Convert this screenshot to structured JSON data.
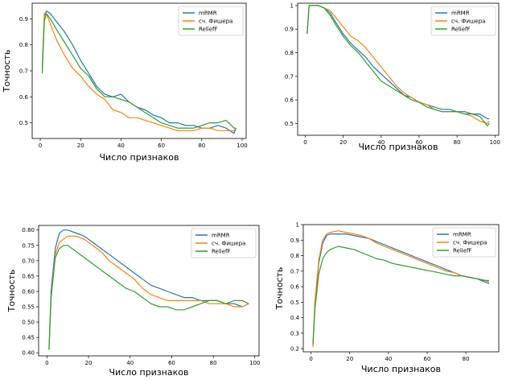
{
  "colors": {
    "mrmr": "#1f77b4",
    "fisher": "#ff7f0e",
    "relieff": "#2ca02c"
  },
  "chart_data": [
    {
      "type": "line",
      "xlabel": "Число признаков",
      "ylabel": "Точность",
      "xlim": [
        -4,
        102
      ],
      "ylim": [
        0.44,
        0.96
      ],
      "xticks": [
        0,
        20,
        40,
        60,
        80,
        100
      ],
      "yticks": [
        0.5,
        0.6,
        0.7,
        0.8,
        0.9
      ],
      "legend": "top-right",
      "series": [
        {
          "name": "mRMR",
          "x": [
            1,
            2,
            3,
            5,
            8,
            12,
            16,
            20,
            24,
            28,
            32,
            36,
            40,
            44,
            48,
            52,
            56,
            60,
            64,
            68,
            72,
            76,
            80,
            84,
            88,
            92,
            96,
            97
          ],
          "y": [
            0.71,
            0.91,
            0.93,
            0.92,
            0.89,
            0.85,
            0.8,
            0.74,
            0.69,
            0.64,
            0.61,
            0.6,
            0.61,
            0.58,
            0.56,
            0.55,
            0.53,
            0.52,
            0.5,
            0.5,
            0.49,
            0.49,
            0.48,
            0.48,
            0.49,
            0.48,
            0.46,
            0.48
          ]
        },
        {
          "name": "сч. Фишера",
          "x": [
            1,
            2,
            3,
            5,
            8,
            12,
            16,
            20,
            24,
            28,
            32,
            36,
            40,
            44,
            48,
            52,
            56,
            60,
            64,
            68,
            72,
            76,
            80,
            84,
            88,
            92,
            96,
            97
          ],
          "y": [
            0.7,
            0.92,
            0.92,
            0.88,
            0.82,
            0.76,
            0.71,
            0.68,
            0.64,
            0.61,
            0.59,
            0.55,
            0.54,
            0.52,
            0.52,
            0.51,
            0.5,
            0.49,
            0.48,
            0.47,
            0.47,
            0.47,
            0.48,
            0.48,
            0.47,
            0.47,
            0.47,
            0.48
          ]
        },
        {
          "name": "ReliefF",
          "x": [
            1,
            2,
            3,
            5,
            8,
            12,
            16,
            20,
            24,
            28,
            32,
            36,
            40,
            44,
            48,
            52,
            56,
            60,
            64,
            68,
            72,
            76,
            80,
            84,
            88,
            92,
            96,
            97
          ],
          "y": [
            0.69,
            0.89,
            0.92,
            0.9,
            0.86,
            0.81,
            0.76,
            0.71,
            0.68,
            0.63,
            0.6,
            0.6,
            0.59,
            0.58,
            0.56,
            0.54,
            0.52,
            0.5,
            0.49,
            0.48,
            0.48,
            0.48,
            0.49,
            0.5,
            0.5,
            0.51,
            0.48,
            0.48
          ]
        }
      ]
    },
    {
      "type": "line",
      "xlabel": "Число признаков",
      "ylabel": "",
      "xlim": [
        -4,
        102
      ],
      "ylim": [
        0.45,
        1.01
      ],
      "xticks": [
        0,
        20,
        40,
        60,
        80,
        100
      ],
      "yticks": [
        0.5,
        0.6,
        0.7,
        0.8,
        0.9,
        1.0
      ],
      "legend": "top-right",
      "series": [
        {
          "name": "mRMR",
          "x": [
            1,
            2,
            4,
            7,
            10,
            13,
            16,
            20,
            24,
            28,
            32,
            36,
            40,
            44,
            48,
            52,
            56,
            60,
            64,
            68,
            72,
            76,
            80,
            84,
            88,
            92,
            96,
            97
          ],
          "y": [
            0.88,
            1.0,
            1.0,
            1.0,
            0.99,
            0.97,
            0.93,
            0.88,
            0.84,
            0.81,
            0.78,
            0.74,
            0.71,
            0.68,
            0.65,
            0.62,
            0.61,
            0.59,
            0.58,
            0.57,
            0.56,
            0.56,
            0.55,
            0.55,
            0.54,
            0.54,
            0.52,
            0.52
          ]
        },
        {
          "name": "сч. Фишера",
          "x": [
            1,
            2,
            4,
            7,
            10,
            13,
            16,
            20,
            24,
            28,
            32,
            36,
            40,
            44,
            48,
            52,
            56,
            60,
            64,
            68,
            72,
            76,
            80,
            84,
            88,
            92,
            96,
            97
          ],
          "y": [
            0.88,
            1.0,
            1.0,
            1.0,
            0.99,
            0.98,
            0.95,
            0.91,
            0.87,
            0.85,
            0.82,
            0.78,
            0.74,
            0.7,
            0.66,
            0.63,
            0.61,
            0.59,
            0.58,
            0.56,
            0.55,
            0.55,
            0.55,
            0.54,
            0.53,
            0.51,
            0.5,
            0.51
          ]
        },
        {
          "name": "ReliefF",
          "x": [
            1,
            2,
            4,
            7,
            10,
            13,
            16,
            20,
            24,
            28,
            32,
            36,
            40,
            44,
            48,
            52,
            56,
            60,
            64,
            68,
            72,
            76,
            80,
            84,
            88,
            92,
            96,
            97
          ],
          "y": [
            0.88,
            1.0,
            1.0,
            1.0,
            0.99,
            0.96,
            0.92,
            0.87,
            0.83,
            0.8,
            0.76,
            0.72,
            0.68,
            0.66,
            0.64,
            0.62,
            0.6,
            0.59,
            0.57,
            0.56,
            0.55,
            0.55,
            0.55,
            0.54,
            0.54,
            0.53,
            0.49,
            0.5
          ]
        }
      ]
    },
    {
      "type": "line",
      "xlabel": "Число признаков",
      "ylabel": "Точность",
      "xlim": [
        -4,
        102
      ],
      "ylim": [
        0.39,
        0.815
      ],
      "xticks": [
        0,
        20,
        40,
        60,
        80,
        100
      ],
      "yticks": [
        0.4,
        0.45,
        0.5,
        0.55,
        0.6,
        0.65,
        0.7,
        0.75,
        0.8
      ],
      "legend": "top-right",
      "series": [
        {
          "name": "mRMR",
          "x": [
            1,
            2,
            4,
            6,
            8,
            10,
            14,
            18,
            22,
            26,
            30,
            34,
            38,
            42,
            46,
            50,
            54,
            58,
            62,
            66,
            70,
            74,
            78,
            82,
            86,
            90,
            94,
            97
          ],
          "y": [
            0.41,
            0.6,
            0.74,
            0.79,
            0.8,
            0.8,
            0.79,
            0.78,
            0.76,
            0.74,
            0.72,
            0.7,
            0.68,
            0.66,
            0.64,
            0.62,
            0.61,
            0.6,
            0.59,
            0.58,
            0.58,
            0.57,
            0.57,
            0.57,
            0.56,
            0.56,
            0.55,
            0.56
          ]
        },
        {
          "name": "сч. Фишера",
          "x": [
            1,
            2,
            4,
            6,
            8,
            10,
            14,
            18,
            22,
            26,
            30,
            34,
            38,
            42,
            46,
            50,
            54,
            58,
            62,
            66,
            70,
            74,
            78,
            82,
            86,
            90,
            94,
            97
          ],
          "y": [
            0.41,
            0.58,
            0.72,
            0.76,
            0.77,
            0.78,
            0.78,
            0.77,
            0.75,
            0.73,
            0.7,
            0.68,
            0.66,
            0.64,
            0.61,
            0.59,
            0.58,
            0.57,
            0.57,
            0.57,
            0.57,
            0.57,
            0.56,
            0.56,
            0.56,
            0.55,
            0.55,
            0.56
          ]
        },
        {
          "name": "ReliefF",
          "x": [
            1,
            2,
            4,
            6,
            8,
            10,
            14,
            18,
            22,
            26,
            30,
            34,
            38,
            42,
            46,
            50,
            54,
            58,
            62,
            66,
            70,
            74,
            78,
            82,
            86,
            90,
            94,
            97
          ],
          "y": [
            0.41,
            0.58,
            0.71,
            0.74,
            0.75,
            0.75,
            0.73,
            0.71,
            0.69,
            0.67,
            0.65,
            0.63,
            0.61,
            0.6,
            0.58,
            0.56,
            0.55,
            0.55,
            0.54,
            0.54,
            0.55,
            0.56,
            0.57,
            0.57,
            0.56,
            0.57,
            0.57,
            0.56
          ]
        }
      ]
    },
    {
      "type": "line",
      "xlabel": "Число признаков",
      "ylabel": "Точность",
      "xlim": [
        -4,
        97
      ],
      "ylim": [
        0.18,
        1.0
      ],
      "xticks": [
        0,
        20,
        40,
        60,
        80
      ],
      "yticks": [
        0.2,
        0.3,
        0.4,
        0.5,
        0.6,
        0.7,
        0.8,
        0.9,
        1.0
      ],
      "legend": "top-right",
      "series": [
        {
          "name": "mRMR",
          "x": [
            1,
            2,
            4,
            6,
            8,
            10,
            14,
            18,
            22,
            26,
            30,
            34,
            38,
            42,
            46,
            50,
            54,
            58,
            62,
            66,
            70,
            74,
            78,
            82,
            86,
            90,
            92
          ],
          "y": [
            0.22,
            0.48,
            0.75,
            0.88,
            0.93,
            0.94,
            0.94,
            0.94,
            0.93,
            0.92,
            0.91,
            0.89,
            0.87,
            0.85,
            0.83,
            0.81,
            0.79,
            0.77,
            0.75,
            0.73,
            0.71,
            0.69,
            0.67,
            0.66,
            0.65,
            0.63,
            0.62
          ]
        },
        {
          "name": "сч. Фишера",
          "x": [
            1,
            2,
            4,
            6,
            8,
            10,
            14,
            18,
            22,
            26,
            30,
            34,
            38,
            42,
            46,
            50,
            54,
            58,
            62,
            66,
            70,
            74,
            78,
            82,
            86,
            90,
            92
          ],
          "y": [
            0.21,
            0.5,
            0.77,
            0.9,
            0.94,
            0.95,
            0.96,
            0.95,
            0.94,
            0.93,
            0.91,
            0.88,
            0.86,
            0.84,
            0.82,
            0.8,
            0.78,
            0.76,
            0.74,
            0.72,
            0.7,
            0.69,
            0.67,
            0.66,
            0.65,
            0.64,
            0.63
          ]
        },
        {
          "name": "ReliefF",
          "x": [
            1,
            2,
            4,
            6,
            8,
            10,
            14,
            18,
            22,
            26,
            30,
            34,
            38,
            42,
            46,
            50,
            54,
            58,
            62,
            66,
            70,
            74,
            78,
            82,
            86,
            90,
            92
          ],
          "y": [
            0.23,
            0.45,
            0.68,
            0.78,
            0.82,
            0.84,
            0.86,
            0.85,
            0.84,
            0.82,
            0.8,
            0.78,
            0.77,
            0.75,
            0.74,
            0.73,
            0.72,
            0.71,
            0.7,
            0.69,
            0.68,
            0.67,
            0.67,
            0.66,
            0.65,
            0.64,
            0.64
          ]
        }
      ]
    }
  ]
}
